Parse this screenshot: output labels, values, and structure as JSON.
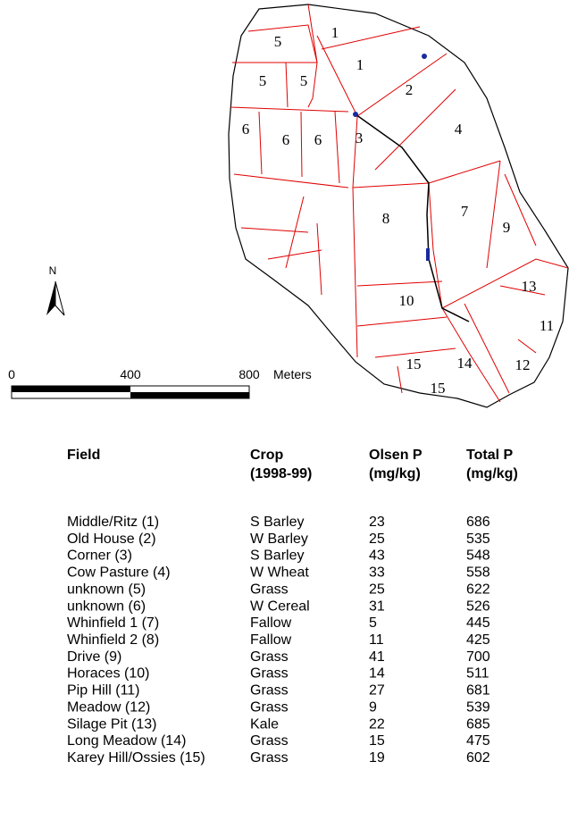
{
  "map": {
    "north": "N",
    "field_labels": [
      "1",
      "1",
      "2",
      "3",
      "4",
      "5",
      "5",
      "5",
      "6",
      "6",
      "6",
      "7",
      "8",
      "9",
      "10",
      "11",
      "12",
      "13",
      "14",
      "15",
      "15"
    ],
    "scale": {
      "labels": [
        "0",
        "400",
        "800"
      ],
      "unit": "Meters"
    }
  },
  "table": {
    "header": [
      [
        "Field"
      ],
      [
        "Crop",
        "(1998-99)"
      ],
      [
        "Olsen P",
        "(mg/kg)"
      ],
      [
        "Total P",
        "(mg/kg)"
      ]
    ],
    "rows": [
      [
        "Middle/Ritz (1)",
        "S Barley",
        23,
        686
      ],
      [
        "Old House (2)",
        "W Barley",
        25,
        535
      ],
      [
        "Corner (3)",
        "S Barley",
        43,
        548
      ],
      [
        "Cow Pasture (4)",
        "W Wheat",
        33,
        558
      ],
      [
        "unknown (5)",
        "Grass",
        25,
        622
      ],
      [
        "unknown (6)",
        "W Cereal",
        31,
        526
      ],
      [
        "Whinfield 1 (7)",
        "Fallow",
        5,
        445
      ],
      [
        "Whinfield 2 (8)",
        "Fallow",
        11,
        425
      ],
      [
        "Drive (9)",
        "Grass",
        41,
        700
      ],
      [
        "Horaces (10)",
        "Grass",
        14,
        511
      ],
      [
        "Pip Hill (11)",
        "Grass",
        27,
        681
      ],
      [
        "Meadow (12)",
        "Grass",
        9,
        539
      ],
      [
        "Silage Pit (13)",
        "Kale",
        22,
        685
      ],
      [
        "Long Meadow (14)",
        "Grass",
        15,
        475
      ],
      [
        "Karey Hill/Ossies (15)",
        "Grass",
        19,
        602
      ]
    ]
  }
}
